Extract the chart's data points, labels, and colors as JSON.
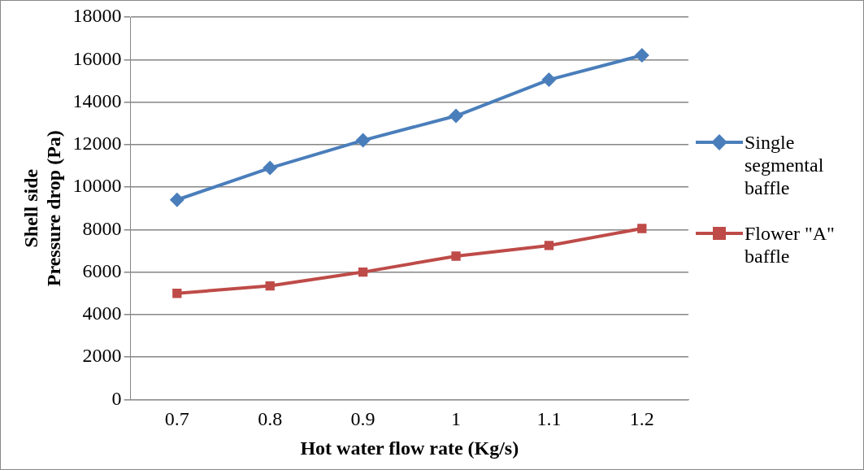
{
  "chart_data": {
    "type": "line",
    "xlabel": "Hot water flow rate (Kg/s)",
    "ylabel": "Shell side Pressure drop (Pa)",
    "categories": [
      "0.7",
      "0.8",
      "0.9",
      "1",
      "1.1",
      "1.2"
    ],
    "series": [
      {
        "name": "Single segmental baffle",
        "color": "#4a7ebb",
        "marker": "diamond",
        "values": [
          9400,
          10900,
          12200,
          13350,
          15050,
          16200
        ]
      },
      {
        "name": "Flower \"A\" baffle",
        "color": "#be4b48",
        "marker": "square",
        "values": [
          5000,
          5350,
          6000,
          6750,
          7250,
          8050
        ]
      }
    ],
    "ylim": [
      0,
      18000
    ],
    "yticks": [
      0,
      2000,
      4000,
      6000,
      8000,
      10000,
      12000,
      14000,
      16000,
      18000
    ],
    "grid": "y",
    "legend": "right",
    "line_style": "solid"
  }
}
